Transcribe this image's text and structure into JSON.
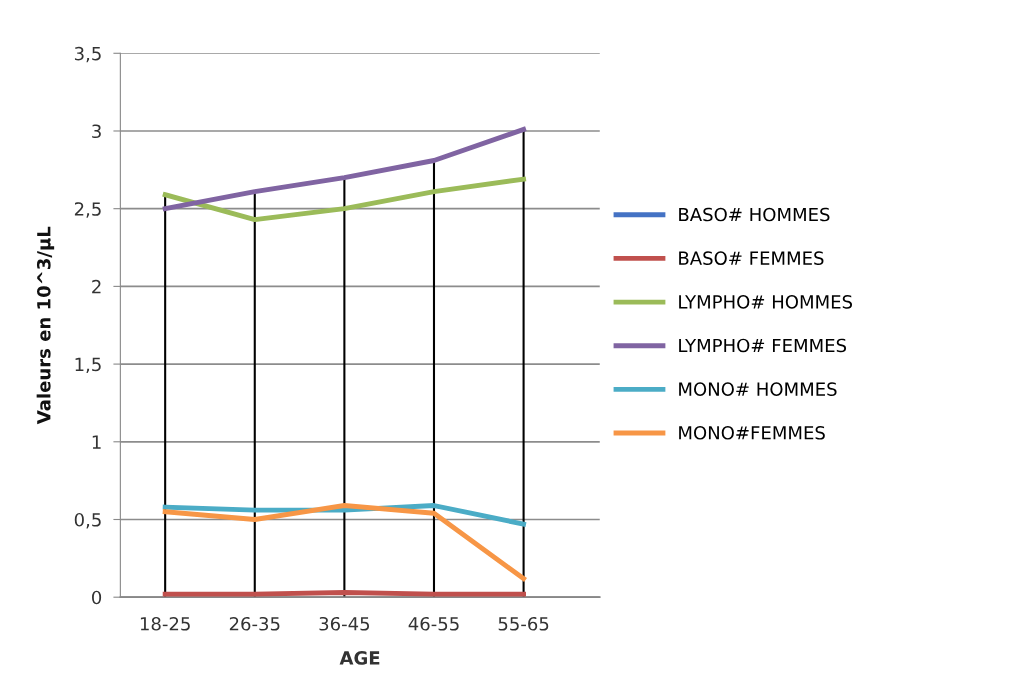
{
  "chart_data": {
    "type": "line",
    "xlabel": "AGE",
    "ylabel": "Valeurs en 10^3/µL",
    "categories": [
      "18-25",
      "26-35",
      "36-45",
      "46-55",
      "55-65"
    ],
    "series": [
      {
        "name": "BASO# HOMMES",
        "color": "#4472c4",
        "values": [
          null,
          null,
          null,
          null,
          null
        ]
      },
      {
        "name": "BASO# FEMMES",
        "color": "#c0504d",
        "values": [
          0.02,
          0.02,
          0.03,
          0.02,
          0.02
        ]
      },
      {
        "name": "LYMPHO# HOMMES",
        "color": "#9bbb59",
        "values": [
          2.59,
          2.43,
          2.5,
          2.61,
          2.69
        ]
      },
      {
        "name": "LYMPHO# FEMMES",
        "color": "#8064a2",
        "values": [
          2.5,
          2.61,
          2.7,
          2.81,
          3.01
        ]
      },
      {
        "name": "MONO# HOMMES",
        "color": "#4bacc6",
        "values": [
          0.58,
          0.56,
          0.56,
          0.59,
          0.47
        ]
      },
      {
        "name": "MONO#FEMMES",
        "color": "#f79646",
        "values": [
          0.55,
          0.5,
          0.59,
          0.54,
          0.12
        ]
      }
    ],
    "ylim": [
      0,
      3.5
    ],
    "yticks": [
      {
        "value": 0,
        "label": "0"
      },
      {
        "value": 0.5,
        "label": "0,5"
      },
      {
        "value": 1,
        "label": "1"
      },
      {
        "value": 1.5,
        "label": "1,5"
      },
      {
        "value": 2,
        "label": "2"
      },
      {
        "value": 2.5,
        "label": "2,5"
      },
      {
        "value": 3,
        "label": "3"
      },
      {
        "value": 3.5,
        "label": "3,5"
      }
    ],
    "grid": "y",
    "legend": "right",
    "marker": "none",
    "line_style": "solid",
    "ref_lines": [
      {
        "axis": "x",
        "value": "18-25",
        "label": null,
        "color": "#000000"
      },
      {
        "axis": "x",
        "value": "26-35",
        "label": null,
        "color": "#000000"
      },
      {
        "axis": "x",
        "value": "36-45",
        "label": null,
        "color": "#000000"
      },
      {
        "axis": "x",
        "value": "46-55",
        "label": null,
        "color": "#000000"
      },
      {
        "axis": "x",
        "value": "55-65",
        "label": null,
        "color": "#000000"
      }
    ]
  }
}
